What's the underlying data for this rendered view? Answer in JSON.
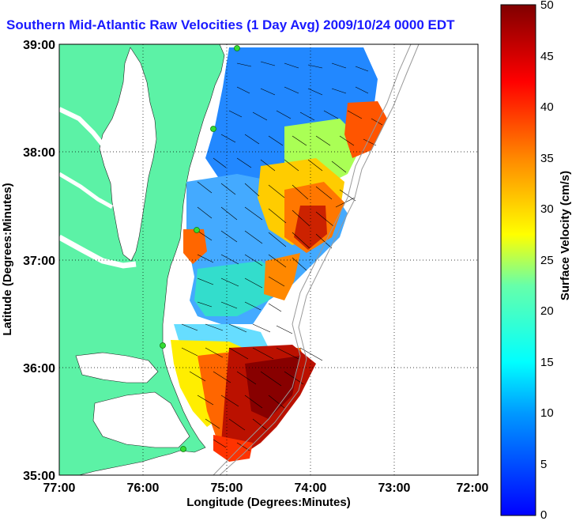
{
  "title": "Southern Mid-Atlantic Raw Velocities (1 Day Avg) 2009/10/24 0000 EDT",
  "x_axis": {
    "label": "Longitude (Degrees:Minutes)",
    "ticks": [
      "77:00",
      "76:00",
      "75:00",
      "74:00",
      "73:00",
      "72:00"
    ]
  },
  "y_axis": {
    "label": "Latitude (Degrees:Minutes)",
    "ticks": [
      "39:00",
      "38:00",
      "37:00",
      "36:00",
      "35:00"
    ]
  },
  "colorbar": {
    "label": "Surface Velocity (cm/s)",
    "ticks": [
      "50",
      "45",
      "40",
      "35",
      "30",
      "25",
      "20",
      "15",
      "10",
      "5",
      "0"
    ],
    "min": 0,
    "max": 50,
    "colormap": "jet"
  },
  "colors": {
    "title": "#1a1aff",
    "land": "#5cf2a6",
    "station": "#33dd33"
  },
  "grid": true,
  "stations": 5
}
